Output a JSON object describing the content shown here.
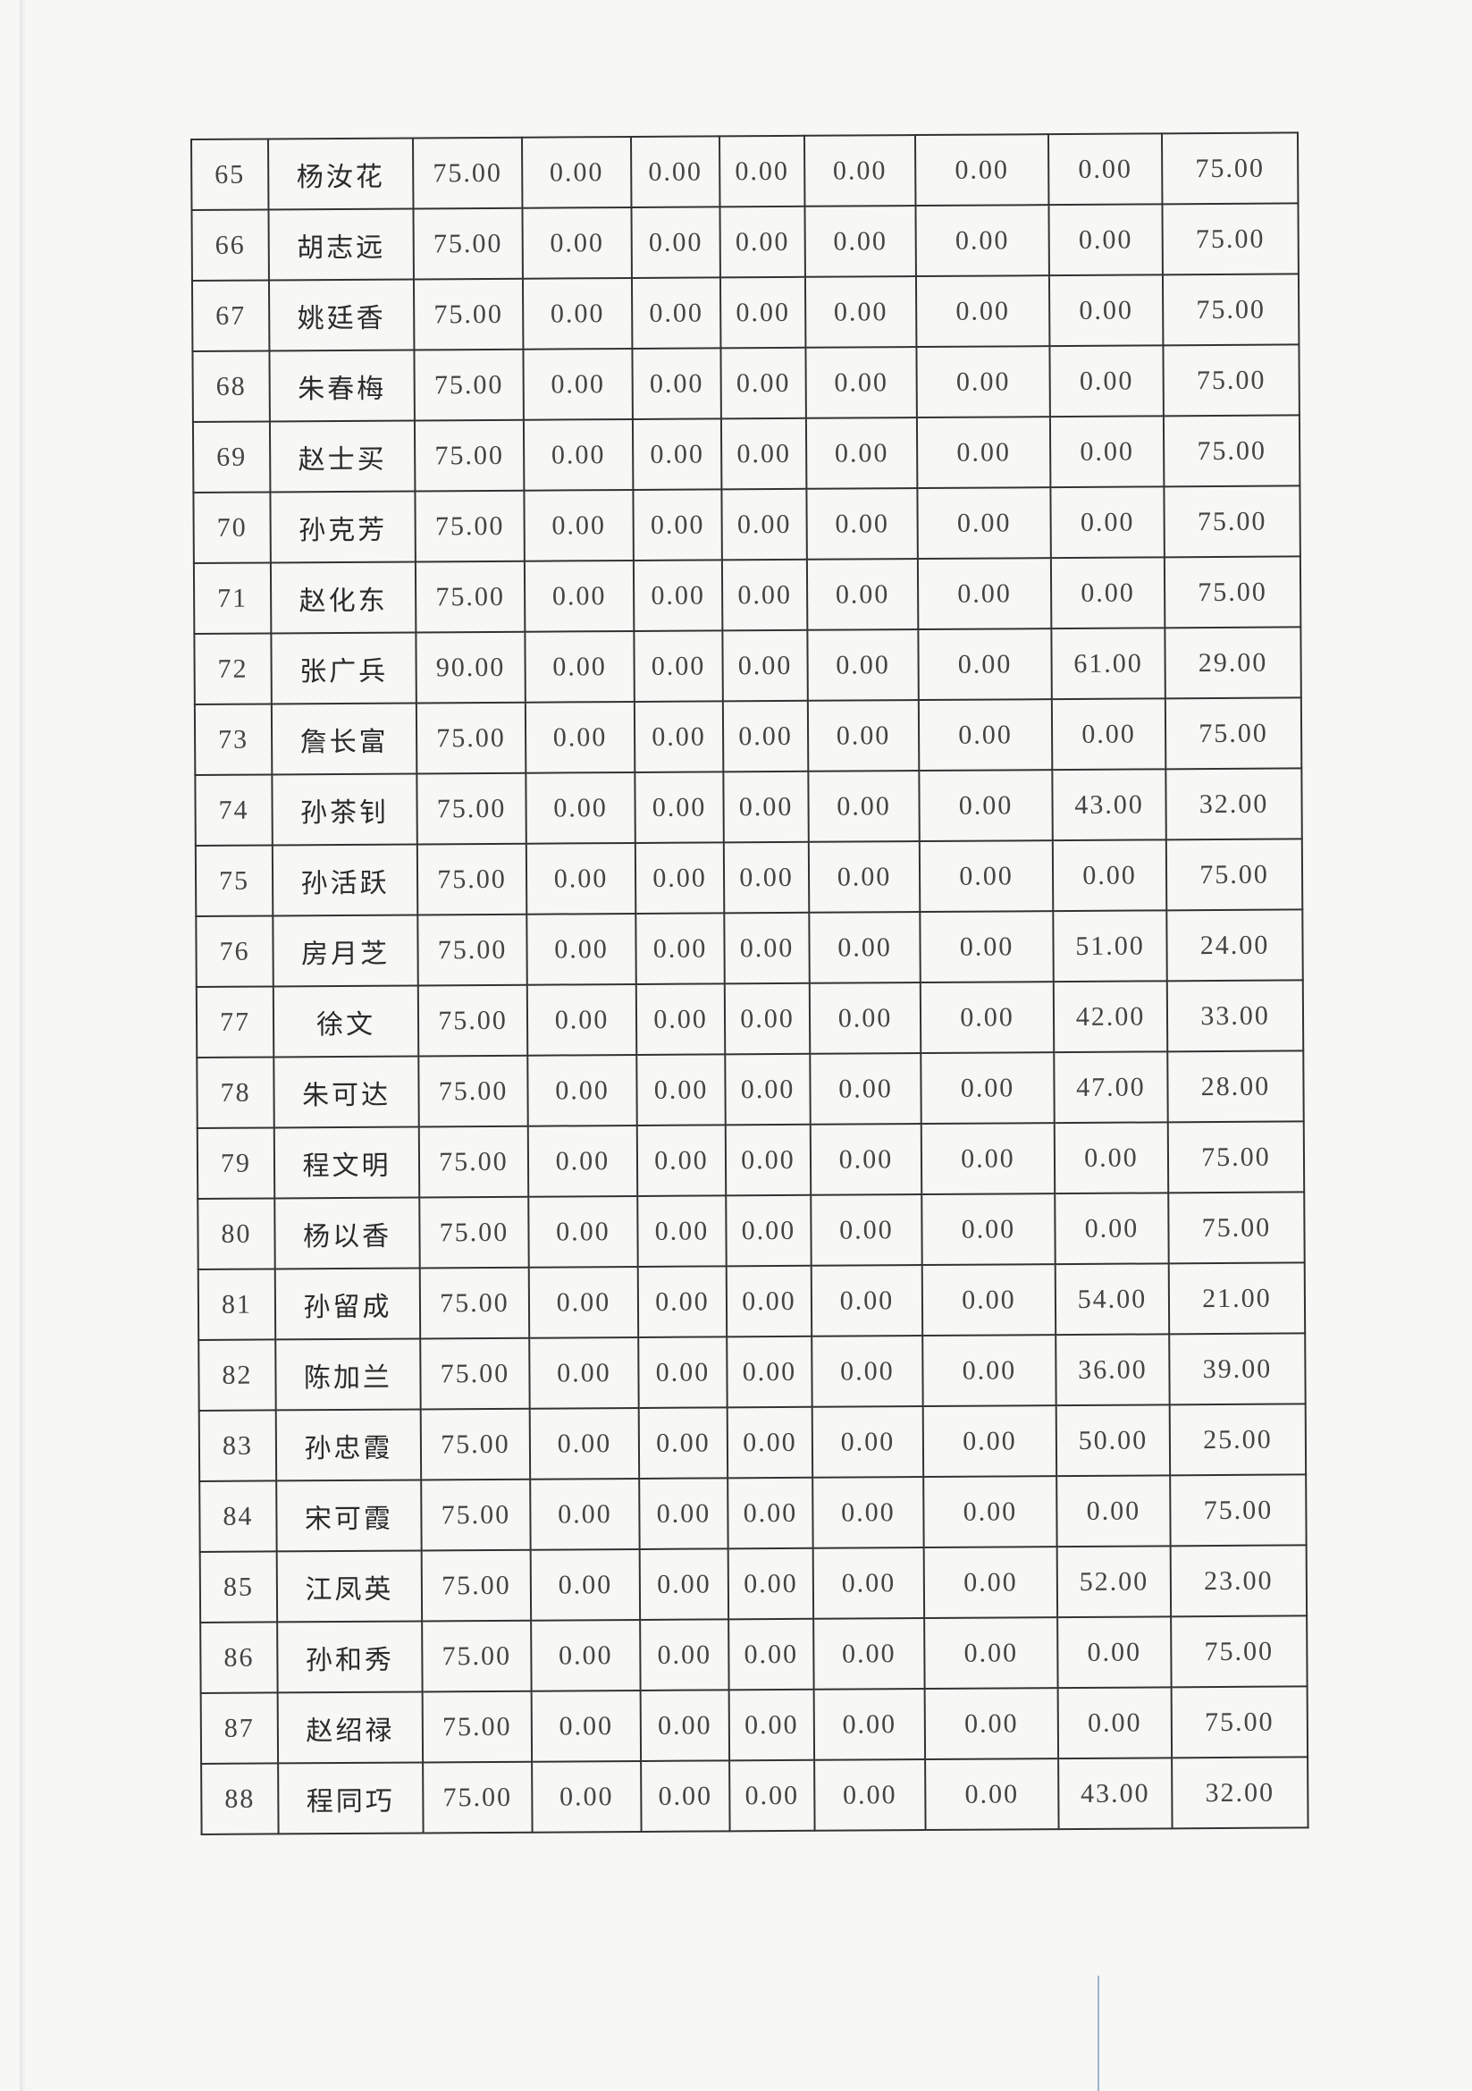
{
  "table": {
    "rows": [
      [
        "65",
        "杨汝花",
        "75.00",
        "0.00",
        "0.00",
        "0.00",
        "0.00",
        "0.00",
        "0.00",
        "75.00"
      ],
      [
        "66",
        "胡志远",
        "75.00",
        "0.00",
        "0.00",
        "0.00",
        "0.00",
        "0.00",
        "0.00",
        "75.00"
      ],
      [
        "67",
        "姚廷香",
        "75.00",
        "0.00",
        "0.00",
        "0.00",
        "0.00",
        "0.00",
        "0.00",
        "75.00"
      ],
      [
        "68",
        "朱春梅",
        "75.00",
        "0.00",
        "0.00",
        "0.00",
        "0.00",
        "0.00",
        "0.00",
        "75.00"
      ],
      [
        "69",
        "赵士买",
        "75.00",
        "0.00",
        "0.00",
        "0.00",
        "0.00",
        "0.00",
        "0.00",
        "75.00"
      ],
      [
        "70",
        "孙克芳",
        "75.00",
        "0.00",
        "0.00",
        "0.00",
        "0.00",
        "0.00",
        "0.00",
        "75.00"
      ],
      [
        "71",
        "赵化东",
        "75.00",
        "0.00",
        "0.00",
        "0.00",
        "0.00",
        "0.00",
        "0.00",
        "75.00"
      ],
      [
        "72",
        "张广兵",
        "90.00",
        "0.00",
        "0.00",
        "0.00",
        "0.00",
        "0.00",
        "61.00",
        "29.00"
      ],
      [
        "73",
        "詹长富",
        "75.00",
        "0.00",
        "0.00",
        "0.00",
        "0.00",
        "0.00",
        "0.00",
        "75.00"
      ],
      [
        "74",
        "孙茶钊",
        "75.00",
        "0.00",
        "0.00",
        "0.00",
        "0.00",
        "0.00",
        "43.00",
        "32.00"
      ],
      [
        "75",
        "孙活跃",
        "75.00",
        "0.00",
        "0.00",
        "0.00",
        "0.00",
        "0.00",
        "0.00",
        "75.00"
      ],
      [
        "76",
        "房月芝",
        "75.00",
        "0.00",
        "0.00",
        "0.00",
        "0.00",
        "0.00",
        "51.00",
        "24.00"
      ],
      [
        "77",
        "徐文",
        "75.00",
        "0.00",
        "0.00",
        "0.00",
        "0.00",
        "0.00",
        "42.00",
        "33.00"
      ],
      [
        "78",
        "朱可达",
        "75.00",
        "0.00",
        "0.00",
        "0.00",
        "0.00",
        "0.00",
        "47.00",
        "28.00"
      ],
      [
        "79",
        "程文明",
        "75.00",
        "0.00",
        "0.00",
        "0.00",
        "0.00",
        "0.00",
        "0.00",
        "75.00"
      ],
      [
        "80",
        "杨以香",
        "75.00",
        "0.00",
        "0.00",
        "0.00",
        "0.00",
        "0.00",
        "0.00",
        "75.00"
      ],
      [
        "81",
        "孙留成",
        "75.00",
        "0.00",
        "0.00",
        "0.00",
        "0.00",
        "0.00",
        "54.00",
        "21.00"
      ],
      [
        "82",
        "陈加兰",
        "75.00",
        "0.00",
        "0.00",
        "0.00",
        "0.00",
        "0.00",
        "36.00",
        "39.00"
      ],
      [
        "83",
        "孙忠霞",
        "75.00",
        "0.00",
        "0.00",
        "0.00",
        "0.00",
        "0.00",
        "50.00",
        "25.00"
      ],
      [
        "84",
        "宋可霞",
        "75.00",
        "0.00",
        "0.00",
        "0.00",
        "0.00",
        "0.00",
        "0.00",
        "75.00"
      ],
      [
        "85",
        "江凤英",
        "75.00",
        "0.00",
        "0.00",
        "0.00",
        "0.00",
        "0.00",
        "52.00",
        "23.00"
      ],
      [
        "86",
        "孙和秀",
        "75.00",
        "0.00",
        "0.00",
        "0.00",
        "0.00",
        "0.00",
        "0.00",
        "75.00"
      ],
      [
        "87",
        "赵绍禄",
        "75.00",
        "0.00",
        "0.00",
        "0.00",
        "0.00",
        "0.00",
        "0.00",
        "75.00"
      ],
      [
        "88",
        "程同巧",
        "75.00",
        "0.00",
        "0.00",
        "0.00",
        "0.00",
        "0.00",
        "43.00",
        "32.00"
      ]
    ]
  }
}
